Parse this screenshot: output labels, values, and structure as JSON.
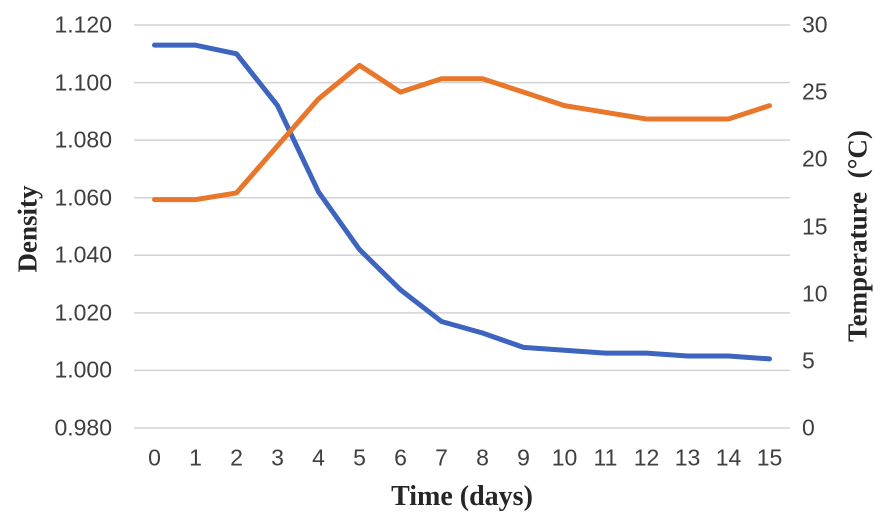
{
  "chart_data": {
    "type": "line",
    "title": "",
    "xlabel": "Time (days)",
    "ylabel_left": "Density",
    "ylabel_right": "Temperature  (°C)",
    "x": [
      0,
      1,
      2,
      3,
      4,
      5,
      6,
      7,
      8,
      9,
      10,
      11,
      12,
      13,
      14,
      15
    ],
    "x_ticks": [
      "0",
      "1",
      "2",
      "3",
      "4",
      "5",
      "6",
      "7",
      "8",
      "9",
      "10",
      "11",
      "12",
      "13",
      "14",
      "15"
    ],
    "y_left_ticks": [
      "1.120",
      "1.100",
      "1.080",
      "1.060",
      "1.040",
      "1.020",
      "1.000",
      "0.980"
    ],
    "y_right_ticks": [
      "30",
      "25",
      "20",
      "15",
      "10",
      "5",
      "0"
    ],
    "y_left_range": [
      0.98,
      1.12
    ],
    "y_right_range": [
      0,
      30
    ],
    "grid": true,
    "legend": "none",
    "series": [
      {
        "name": "Density",
        "axis": "left",
        "color": "#3D64BE",
        "values": [
          1.113,
          1.113,
          1.11,
          1.092,
          1.062,
          1.042,
          1.028,
          1.017,
          1.013,
          1.008,
          1.007,
          1.006,
          1.006,
          1.005,
          1.005,
          1.004
        ]
      },
      {
        "name": "Temperature",
        "axis": "right",
        "color": "#E8762B",
        "values": [
          17,
          17,
          17.5,
          21,
          24.5,
          27,
          25,
          26,
          26,
          25,
          24,
          23.5,
          23,
          23,
          23,
          24
        ]
      }
    ],
    "colors": {
      "grid": "#D2D2D2",
      "axis_line": "#D2D2D2",
      "tick_text": "#3F3F3F",
      "title_text": "#262626"
    }
  }
}
